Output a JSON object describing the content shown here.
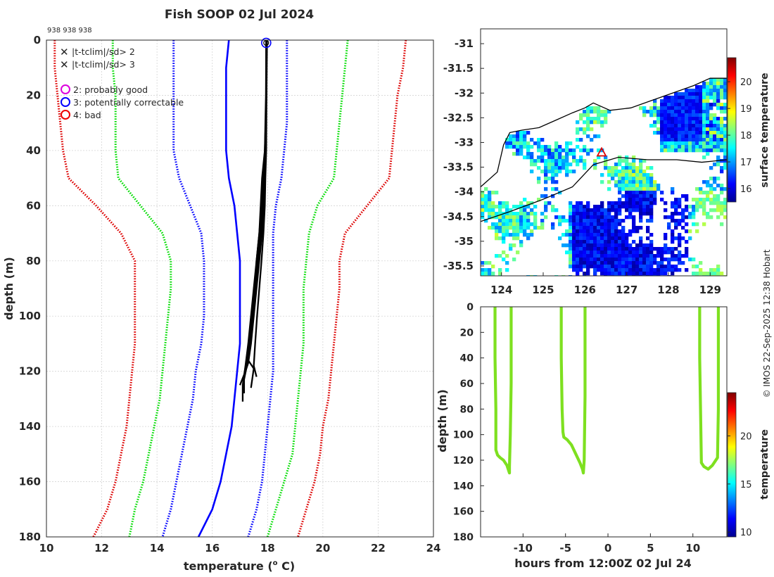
{
  "figure": {
    "title": "Fish SOOP 02 Jul 2024",
    "station_ids": "938 938 938",
    "credit": "© IMOS 22-Sep-2025 12:38 Hobart"
  },
  "legend": {
    "flag_2sd": "|t-tclim|/sd> 2",
    "flag_3sd": "|t-tclim|/sd> 3",
    "qc2": "2: probably good",
    "qc3": "3: potentially correctable",
    "qc4": "4: bad"
  },
  "colors": {
    "sd1": "#0000ff",
    "sd2": "#00dd00",
    "sd3": "#dd0000",
    "profile": "#000000",
    "qc2": "#dd00dd",
    "qc3": "#0000ff",
    "qc4": "#ee0000",
    "trace": "#7ee020"
  },
  "chart_data": [
    {
      "id": "profile",
      "type": "line",
      "xlabel": "temperature (",
      "xlabel_sup": "o",
      "xlabel_tail": " C)",
      "ylabel": "depth (m)",
      "xlim": [
        10,
        24
      ],
      "ylim": [
        180,
        0
      ],
      "xticks": [
        10,
        12,
        14,
        16,
        18,
        20,
        22,
        24
      ],
      "yticks": [
        0,
        20,
        40,
        60,
        80,
        100,
        120,
        140,
        160,
        180
      ],
      "grid": true,
      "depth": [
        0,
        10,
        20,
        30,
        40,
        50,
        60,
        70,
        80,
        90,
        100,
        110,
        120,
        130,
        140,
        150,
        160,
        170,
        180
      ],
      "climatology": [
        {
          "name": "mean",
          "style": "solid",
          "color": "sd1",
          "values": [
            16.6,
            16.5,
            16.5,
            16.5,
            16.5,
            16.6,
            16.8,
            16.9,
            17.0,
            17.0,
            17.0,
            17.0,
            16.9,
            16.8,
            16.7,
            16.5,
            16.3,
            16.0,
            15.5
          ]
        },
        {
          "name": "-1sd",
          "style": "dotted",
          "color": "sd1",
          "values": [
            14.6,
            14.6,
            14.6,
            14.6,
            14.6,
            14.8,
            15.2,
            15.6,
            15.7,
            15.7,
            15.7,
            15.6,
            15.4,
            15.3,
            15.1,
            14.9,
            14.7,
            14.5,
            14.2
          ]
        },
        {
          "name": "+1sd",
          "style": "dotted",
          "color": "sd1",
          "values": [
            18.7,
            18.7,
            18.7,
            18.7,
            18.6,
            18.5,
            18.3,
            18.2,
            18.2,
            18.2,
            18.2,
            18.2,
            18.2,
            18.1,
            18.0,
            17.9,
            17.8,
            17.6,
            17.3
          ]
        },
        {
          "name": "-2sd",
          "style": "dotted",
          "color": "sd2",
          "values": [
            12.4,
            12.4,
            12.5,
            12.5,
            12.5,
            12.6,
            13.4,
            14.2,
            14.5,
            14.5,
            14.4,
            14.3,
            14.2,
            14.1,
            13.9,
            13.7,
            13.5,
            13.2,
            13.0
          ]
        },
        {
          "name": "+2sd",
          "style": "dotted",
          "color": "sd2",
          "values": [
            20.9,
            20.8,
            20.7,
            20.6,
            20.5,
            20.4,
            19.8,
            19.5,
            19.4,
            19.3,
            19.3,
            19.3,
            19.2,
            19.1,
            19.0,
            18.9,
            18.6,
            18.3,
            18.0
          ]
        },
        {
          "name": "-3sd",
          "style": "dotted",
          "color": "sd3",
          "values": [
            10.3,
            10.3,
            10.4,
            10.5,
            10.6,
            10.8,
            11.8,
            12.7,
            13.2,
            13.2,
            13.2,
            13.2,
            13.1,
            13.0,
            12.9,
            12.7,
            12.5,
            12.2,
            11.7
          ]
        },
        {
          "name": "+3sd",
          "style": "dotted",
          "color": "sd3",
          "values": [
            23.0,
            22.9,
            22.7,
            22.6,
            22.5,
            22.4,
            21.6,
            20.8,
            20.6,
            20.6,
            20.5,
            20.4,
            20.3,
            20.2,
            20.0,
            19.9,
            19.7,
            19.4,
            19.1
          ]
        }
      ],
      "profiles": [
        {
          "depth": [
            0,
            20,
            40,
            50,
            60,
            70,
            80,
            90,
            100,
            110,
            117,
            120,
            125
          ],
          "temp": [
            17.95,
            17.95,
            17.93,
            17.9,
            17.85,
            17.8,
            17.7,
            17.6,
            17.5,
            17.4,
            17.3,
            17.2,
            17.0
          ]
        },
        {
          "depth": [
            0,
            20,
            40,
            50,
            60,
            70,
            80,
            90,
            100,
            110,
            118,
            123,
            128
          ],
          "temp": [
            17.97,
            17.95,
            17.92,
            17.88,
            17.82,
            17.75,
            17.65,
            17.55,
            17.45,
            17.35,
            17.25,
            17.15,
            17.15
          ]
        },
        {
          "depth": [
            0,
            20,
            40,
            50,
            60,
            70,
            80,
            90,
            100,
            110,
            118,
            125,
            131
          ],
          "temp": [
            17.98,
            17.96,
            17.9,
            17.85,
            17.78,
            17.7,
            17.6,
            17.5,
            17.4,
            17.3,
            17.2,
            17.1,
            17.1
          ]
        },
        {
          "depth": [
            0,
            20,
            40,
            50,
            60,
            70,
            80,
            90,
            100,
            110,
            118,
            122
          ],
          "temp": [
            17.96,
            17.96,
            17.95,
            17.92,
            17.9,
            17.85,
            17.78,
            17.7,
            17.62,
            17.55,
            17.5,
            17.6
          ]
        },
        {
          "depth": [
            0,
            20,
            40,
            50,
            60,
            70,
            80,
            90,
            100,
            110,
            116,
            119,
            126
          ],
          "temp": [
            17.95,
            17.94,
            17.9,
            17.8,
            17.75,
            17.7,
            17.6,
            17.55,
            17.45,
            17.35,
            17.3,
            17.5,
            17.4
          ]
        }
      ],
      "qc_marker": {
        "temp": 17.95,
        "depth": 1,
        "flag": "qc3"
      }
    },
    {
      "id": "map",
      "type": "heatmap",
      "xlim": [
        123.5,
        129.4
      ],
      "ylim": [
        -35.7,
        -30.7
      ],
      "xticks": [
        124,
        125,
        126,
        127,
        128,
        129
      ],
      "yticks": [
        -31,
        -31.5,
        -32,
        -32.5,
        -33,
        -33.5,
        -34,
        -34.5,
        -35,
        -35.5
      ],
      "colorbar_label": "surface temperature",
      "colorbar_ticks": [
        16,
        17,
        18,
        19,
        20
      ],
      "colorbar_range": [
        15.5,
        20.9
      ],
      "coastline_lon": [
        123.5,
        123.7,
        123.9,
        124.05,
        124.2,
        124.5,
        124.9,
        125.3,
        125.7,
        126.0,
        126.2,
        126.6,
        127.1,
        127.6,
        128.1,
        128.6,
        129.0,
        129.4
      ],
      "coastline_lat": [
        -33.9,
        -33.75,
        -33.6,
        -33.05,
        -32.8,
        -32.75,
        -32.7,
        -32.55,
        -32.4,
        -32.3,
        -32.2,
        -32.35,
        -32.3,
        -32.15,
        -32.0,
        -31.85,
        -31.7,
        -31.7
      ],
      "shelf_lon": [
        123.5,
        124.2,
        125.0,
        125.7,
        126.2,
        126.8,
        127.5,
        128.2,
        128.8,
        129.4
      ],
      "shelf_lat": [
        -34.6,
        -34.4,
        -34.15,
        -33.9,
        -33.45,
        -33.3,
        -33.35,
        -33.35,
        -33.4,
        -33.35
      ],
      "ship_lon": 126.4,
      "ship_lat": -33.2
    },
    {
      "id": "timeseries",
      "type": "line",
      "xlabel": "hours from 12:00Z 02 Jul 24",
      "ylabel": "depth (m)",
      "xlim": [
        -15,
        14
      ],
      "ylim": [
        180,
        0
      ],
      "xticks": [
        -10,
        -5,
        0,
        5,
        10
      ],
      "yticks": [
        0,
        20,
        40,
        60,
        80,
        100,
        120,
        140,
        160,
        180
      ],
      "colorbar_label": "temperature",
      "colorbar_ticks": [
        10,
        15,
        20
      ],
      "colorbar_range": [
        9.5,
        24.5
      ],
      "casts": [
        {
          "hours": [
            -13.3,
            -13.3,
            -13.2,
            -13.2,
            -13.0,
            -12.7,
            -12.3,
            -11.9,
            -11.7,
            -11.6,
            -11.6,
            -11.5,
            -11.4,
            -11.4
          ],
          "depth": [
            0,
            40,
            80,
            112,
            116,
            118,
            120,
            124,
            128,
            130,
            125,
            100,
            60,
            0
          ]
        },
        {
          "hours": [
            -5.5,
            -5.5,
            -5.4,
            -5.3,
            -5.2,
            -4.8,
            -4.3,
            -3.8,
            -3.3,
            -3.0,
            -2.9,
            -2.8,
            -2.7,
            -2.7
          ],
          "depth": [
            0,
            40,
            80,
            98,
            102,
            104,
            108,
            115,
            122,
            127,
            130,
            120,
            70,
            0
          ]
        },
        {
          "hours": [
            10.8,
            10.8,
            10.9,
            11.0,
            11.3,
            11.8,
            12.3,
            12.6,
            12.8,
            12.9,
            13.0,
            13.0
          ],
          "depth": [
            0,
            40,
            80,
            122,
            125,
            127,
            124,
            121,
            119,
            118,
            80,
            0
          ]
        }
      ]
    }
  ]
}
